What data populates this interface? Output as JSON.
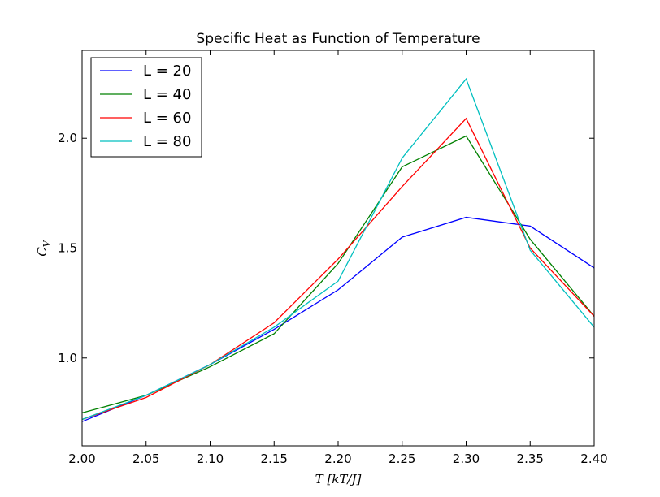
{
  "chart_data": {
    "type": "line",
    "title": "Specific Heat as Function of Temperature",
    "xlabel": "T  [kT/J]",
    "ylabel": "C_V",
    "ylabel_main": "C",
    "ylabel_sub": "V",
    "xlim": [
      2.0,
      2.4
    ],
    "ylim": [
      0.6,
      2.4
    ],
    "x": [
      2.0,
      2.05,
      2.1,
      2.15,
      2.2,
      2.25,
      2.3,
      2.35,
      2.4
    ],
    "xticks": [
      "2.00",
      "2.05",
      "2.10",
      "2.15",
      "2.20",
      "2.25",
      "2.30",
      "2.35",
      "2.40"
    ],
    "yticks": [
      {
        "value": 1.0,
        "label": "1.0"
      },
      {
        "value": 1.5,
        "label": "1.5"
      },
      {
        "value": 2.0,
        "label": "2.0"
      }
    ],
    "grid": false,
    "legend_position": "top-left",
    "series": [
      {
        "name": "L = 20",
        "color": "#0000ff",
        "values": [
          0.71,
          0.83,
          0.97,
          1.13,
          1.31,
          1.55,
          1.64,
          1.6,
          1.41
        ]
      },
      {
        "name": "L = 40",
        "color": "#008000",
        "values": [
          0.75,
          0.83,
          0.96,
          1.11,
          1.43,
          1.87,
          2.01,
          1.54,
          1.19
        ]
      },
      {
        "name": "L = 60",
        "color": "#ff0000",
        "values": [
          0.72,
          0.82,
          0.97,
          1.16,
          1.45,
          1.78,
          2.09,
          1.5,
          1.19
        ]
      },
      {
        "name": "L = 80",
        "color": "#00bfbf",
        "values": [
          0.72,
          0.83,
          0.97,
          1.14,
          1.35,
          1.91,
          2.27,
          1.49,
          1.14
        ]
      }
    ]
  }
}
